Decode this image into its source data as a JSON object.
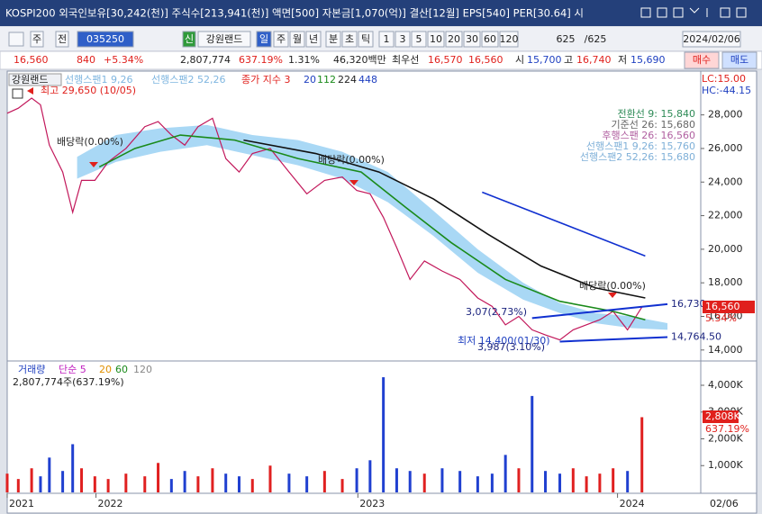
{
  "window": {
    "title": "KOSPI200 외국인보유[30,242(천)] 주식수[213,941(천)] 액면[500] 자본금[1,070(억)] 결산[12월] EPS[540] PER[30.64] 시",
    "toolbar": [
      "주",
      "전",
      "035250",
      "신",
      "강원랜드",
      "일",
      "주",
      "월",
      "년",
      "분",
      "초",
      "틱",
      "1",
      "3",
      "5",
      "10",
      "20",
      "30",
      "60",
      "120",
      "625",
      "/625",
      "2024/02/06"
    ],
    "quote": [
      "16,560",
      "840",
      "+5.34%",
      "2,807,774",
      "637.19%",
      "1.31%",
      "46,320백만",
      "최우선",
      "16,570",
      "16,560",
      "시",
      "15,700",
      "고",
      "16,740",
      "저",
      "15,690"
    ],
    "buttons": [
      "매수",
      "매도"
    ],
    "x_end": "02/06"
  },
  "chart_data": [
    {
      "type": "line",
      "name": "강원랜드",
      "legend": [
        "선행스팬1 9,26",
        "선행스팬2 52,26",
        "종가 지수 3",
        "20"
      ],
      "status": [
        "LC:15.00",
        "HC:-44.15"
      ],
      "annotations": [
        "최고 29,650 (10/05)",
        "배당락(0.00%)",
        "배당락(0.00%)",
        "배당락(0.00%)",
        "3,07(2.73%)",
        "최저 14,400(01/30)",
        "3,987(3.10%)"
      ],
      "ichimoku_labels": [
        "전환선 9: 15,840",
        "기준선 26: 15,680",
        "후행스팬 26: 16,560",
        "선행스팬1 9,26: 15,760",
        "선행스팬2 52,26: 15,680"
      ],
      "current": {
        "label": "16,560",
        "change": "5.34%"
      },
      "xlim": [
        0,
        625
      ],
      "ylim": [
        13400,
        30500
      ],
      "yticks": [
        {
          "value": 14000,
          "label": "14,000"
        },
        {
          "value": 16000,
          "label": "16,000"
        },
        {
          "value": 18000,
          "label": "18,000"
        },
        {
          "value": 20000,
          "label": "20,000"
        },
        {
          "value": 22000,
          "label": "22,000"
        },
        {
          "value": 24000,
          "label": "24,000"
        },
        {
          "value": 26000,
          "label": "26,000"
        },
        {
          "value": 28000,
          "label": "28,000"
        }
      ],
      "grid": false,
      "cloud": {
        "color": "#a9d8f5",
        "x": [
          63,
          98,
          138,
          180,
          221,
          262,
          302,
          343,
          384,
          424,
          465,
          498,
          530,
          563,
          595
        ],
        "upper": [
          25500,
          26800,
          27200,
          27400,
          26800,
          26500,
          25800,
          24600,
          22300,
          20000,
          18000,
          16800,
          16200,
          16000,
          15600
        ],
        "lower": [
          24200,
          25200,
          25800,
          26200,
          25600,
          25000,
          24200,
          22800,
          20800,
          18600,
          17000,
          16200,
          15600,
          15300,
          15200
        ]
      },
      "series": [
        {
          "name": "강원랜드",
          "color": "#c2185b",
          "x": [
            0,
            10,
            22,
            30,
            38,
            50,
            59,
            67,
            79,
            91,
            107,
            124,
            136,
            148,
            160,
            172,
            185,
            197,
            209,
            221,
            237,
            254,
            270,
            286,
            302,
            315,
            327,
            339,
            351,
            363,
            376,
            392,
            408,
            424,
            437,
            449,
            461,
            473,
            485,
            498,
            510,
            522,
            534,
            546,
            559,
            572
          ],
          "values": [
            28100,
            28400,
            29000,
            28600,
            26200,
            24600,
            22200,
            24100,
            24100,
            25200,
            26000,
            27300,
            27600,
            26800,
            26200,
            27300,
            27800,
            25400,
            24600,
            25700,
            26000,
            24600,
            23300,
            24100,
            24300,
            23500,
            23300,
            21900,
            20100,
            18200,
            19300,
            18700,
            18200,
            17100,
            16600,
            15500,
            16000,
            15200,
            14900,
            14600,
            15200,
            15500,
            15800,
            16300,
            15200,
            16560
          ]
        },
        {
          "name": "112",
          "color": "#1a8a1a",
          "x": [
            83,
            115,
            156,
            205,
            262,
            319,
            359,
            400,
            449,
            498,
            546,
            575
          ],
          "values": [
            24900,
            26000,
            26800,
            26500,
            25400,
            24600,
            22500,
            20400,
            18200,
            16900,
            16300,
            15800
          ]
        },
        {
          "name": "224",
          "color": "#111111",
          "x": [
            213,
            278,
            335,
            384,
            433,
            481,
            530,
            575
          ],
          "values": [
            26500,
            25700,
            24600,
            23000,
            20900,
            19000,
            17700,
            17100
          ]
        },
        {
          "name": "448",
          "color": "#1030d0",
          "x": [
            428,
            575
          ],
          "values": [
            23400,
            19600
          ]
        }
      ],
      "trendlines": [
        {
          "label": "16,730",
          "color": "#1030d0",
          "x": [
            473,
            595
          ],
          "values": [
            15900,
            16730
          ]
        },
        {
          "label": "14,764.50",
          "color": "#1030d0",
          "x": [
            498,
            595
          ],
          "values": [
            14500,
            14764.5
          ]
        }
      ]
    },
    {
      "type": "bar",
      "name": "거래량",
      "legend": [
        "단순 5",
        "20",
        "60",
        "120"
      ],
      "summary": "2,807,774주(637.19%)",
      "current": {
        "label": "2,808K",
        "change": "637.19%"
      },
      "xlim": [
        0,
        625
      ],
      "ylim": [
        0,
        4840
      ],
      "yticks": [
        {
          "value": 1000,
          "label": "1,000K"
        },
        {
          "value": 2000,
          "label": "2,000K"
        },
        {
          "value": 3000,
          "label": "3,000K"
        },
        {
          "value": 4000,
          "label": "4,000K"
        }
      ],
      "xticks": [
        {
          "value": 0,
          "label": "2021"
        },
        {
          "value": 80,
          "label": "2022"
        },
        {
          "value": 316,
          "label": "2023"
        },
        {
          "value": 550,
          "label": "2024"
        }
      ],
      "up_color": "#e02020",
      "down_color": "#2040d0",
      "x": [
        0,
        10,
        22,
        30,
        38,
        50,
        59,
        67,
        79,
        91,
        107,
        124,
        136,
        148,
        160,
        172,
        185,
        197,
        209,
        221,
        237,
        254,
        270,
        286,
        302,
        315,
        327,
        339,
        351,
        363,
        376,
        392,
        408,
        424,
        437,
        449,
        461,
        473,
        485,
        498,
        510,
        522,
        534,
        546,
        559,
        572
      ],
      "values": [
        700,
        500,
        900,
        600,
        1300,
        800,
        1800,
        900,
        600,
        500,
        700,
        600,
        1100,
        500,
        800,
        600,
        900,
        700,
        600,
        500,
        1000,
        700,
        600,
        800,
        500,
        900,
        1200,
        4300,
        900,
        800,
        700,
        900,
        800,
        600,
        700,
        1400,
        900,
        3600,
        800,
        700,
        900,
        600,
        700,
        900,
        800,
        2807.774
      ]
    }
  ]
}
